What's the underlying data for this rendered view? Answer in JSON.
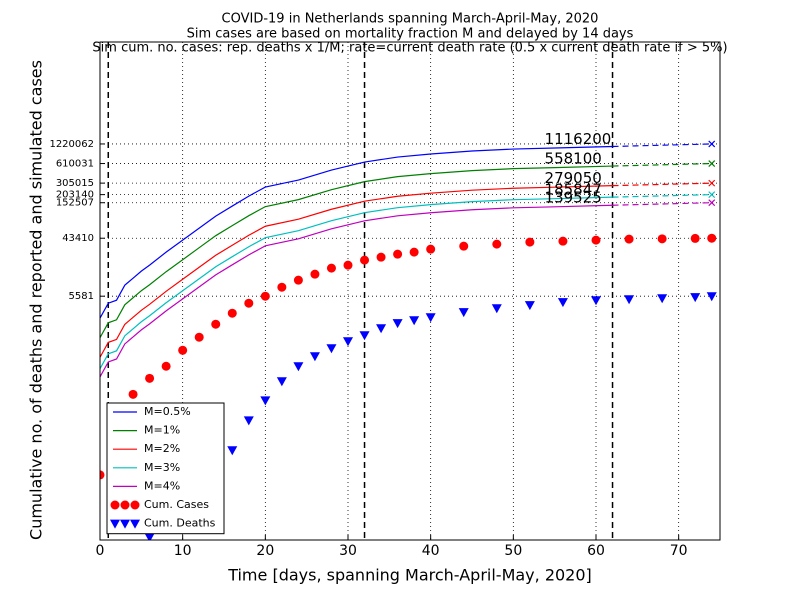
{
  "chart_data": {
    "type": "line",
    "title": [
      "COVID-19 in Netherlands spanning March-April-May, 2020",
      "Sim cases are based on mortality fraction M and delayed by 14 days",
      "Sim cum. no. cases: rep. deaths x 1/M; rate=current death rate (0.5 x current death rate if > 5%)"
    ],
    "xlabel": "Time [days, spanning March-April-May, 2020]",
    "ylabel": "Cumulative no. of deaths and reported and simulated cases",
    "xlim": [
      0,
      75
    ],
    "xticks": [
      0,
      10,
      20,
      30,
      40,
      50,
      60,
      70
    ],
    "ylim": [
      1,
      45000000
    ],
    "yscale": "log",
    "yticks": [
      5581,
      43410,
      152507,
      203140,
      305015,
      610031,
      1220062
    ],
    "grid": true,
    "vlines": [
      1,
      32,
      62
    ],
    "projection_x": 74,
    "legend": "lower left",
    "series": [
      {
        "name": "M=0.5%",
        "color": "#0000ff",
        "style": "line",
        "x": [
          0,
          1,
          2,
          3,
          4,
          5,
          6,
          8,
          10,
          12,
          14,
          16,
          18,
          20,
          24,
          28,
          32,
          36,
          40,
          45,
          50,
          55,
          62
        ],
        "values": [
          2565,
          4355,
          4840,
          8240,
          10570,
          13550,
          16750,
          26550,
          40600,
          62100,
          95000,
          135500,
          192800,
          265400,
          340200,
          484300,
          643600,
          767500,
          854700,
          950600,
          1018600,
          1056000,
          1116200
        ],
        "projected": 1220062,
        "annotation": 1116200
      },
      {
        "name": "M=1%",
        "color": "#008000",
        "style": "line",
        "x": [
          0,
          1,
          2,
          3,
          4,
          5,
          6,
          8,
          10,
          12,
          14,
          16,
          18,
          20,
          24,
          28,
          32,
          36,
          40,
          45,
          50,
          55,
          62
        ],
        "values": [
          1283,
          2178,
          2420,
          4120,
          5285,
          6775,
          8375,
          13275,
          20300,
          31050,
          47500,
          67750,
          96400,
          132700,
          170100,
          242150,
          321800,
          383750,
          427350,
          475300,
          509300,
          528000,
          558100
        ],
        "projected": 610031,
        "annotation": 558100
      },
      {
        "name": "M=2%",
        "color": "#ff0000",
        "style": "line",
        "x": [
          0,
          1,
          2,
          3,
          4,
          5,
          6,
          8,
          10,
          12,
          14,
          16,
          18,
          20,
          24,
          28,
          32,
          36,
          40,
          45,
          50,
          55,
          62
        ],
        "values": [
          641,
          1089,
          1210,
          2060,
          2643,
          3388,
          4188,
          6638,
          10150,
          15525,
          23750,
          33875,
          48200,
          66350,
          85050,
          121075,
          160900,
          191875,
          213675,
          237650,
          254650,
          264000,
          279050
        ],
        "projected": 305015,
        "annotation": 279050
      },
      {
        "name": "M=3%",
        "color": "#00bfbf",
        "style": "line",
        "x": [
          0,
          1,
          2,
          3,
          4,
          5,
          6,
          8,
          10,
          12,
          14,
          16,
          18,
          20,
          24,
          28,
          32,
          36,
          40,
          45,
          50,
          55,
          62
        ],
        "values": [
          428,
          726,
          807,
          1373,
          1762,
          2258,
          2792,
          4425,
          6767,
          10350,
          15833,
          22583,
          32133,
          44233,
          56700,
          80717,
          107267,
          127917,
          142450,
          158433,
          169767,
          176000,
          185847
        ],
        "projected": 203140,
        "annotation": 185847
      },
      {
        "name": "M=4%",
        "color": "#bf00bf",
        "style": "line",
        "x": [
          0,
          1,
          2,
          3,
          4,
          5,
          6,
          8,
          10,
          12,
          14,
          16,
          18,
          20,
          24,
          28,
          32,
          36,
          40,
          45,
          50,
          55,
          62
        ],
        "values": [
          321,
          544,
          605,
          1030,
          1321,
          1694,
          2094,
          3319,
          5075,
          7763,
          11875,
          16938,
          24100,
          33175,
          42525,
          60538,
          80450,
          95938,
          106838,
          118825,
          127325,
          132000,
          139525
        ],
        "projected": 152507,
        "annotation": 139525
      },
      {
        "name": "Cum. Cases",
        "color": "#ff0000",
        "style": "circle",
        "x": [
          0,
          4,
          6,
          8,
          10,
          12,
          14,
          16,
          18,
          20,
          22,
          24,
          26,
          28,
          30,
          32,
          34,
          36,
          38,
          40,
          44,
          48,
          52,
          56,
          60,
          64,
          68,
          72,
          74
        ],
        "values": [
          10,
          173,
          305,
          468,
          824,
          1306,
          2070,
          3055,
          4355,
          5581,
          7675,
          9840,
          12170,
          15070,
          16750,
          20000,
          22230,
          24720,
          26550,
          29510,
          32810,
          35240,
          37840,
          39170,
          40600,
          42070,
          42500,
          43100,
          43410
        ]
      },
      {
        "name": "Cum. Deaths",
        "color": "#0000ff",
        "style": "triangle",
        "x": [
          6,
          16,
          18,
          20,
          22,
          24,
          26,
          28,
          30,
          32,
          34,
          36,
          38,
          40,
          44,
          48,
          52,
          56,
          60,
          64,
          68,
          72,
          74
        ],
        "values": [
          1.1,
          24,
          69,
          140,
          275,
          468,
          667,
          885,
          1135,
          1403,
          1799,
          2148,
          2388,
          2655,
          3170,
          3650,
          4064,
          4519,
          4842,
          5020,
          5200,
          5395,
          5581
        ]
      }
    ]
  }
}
